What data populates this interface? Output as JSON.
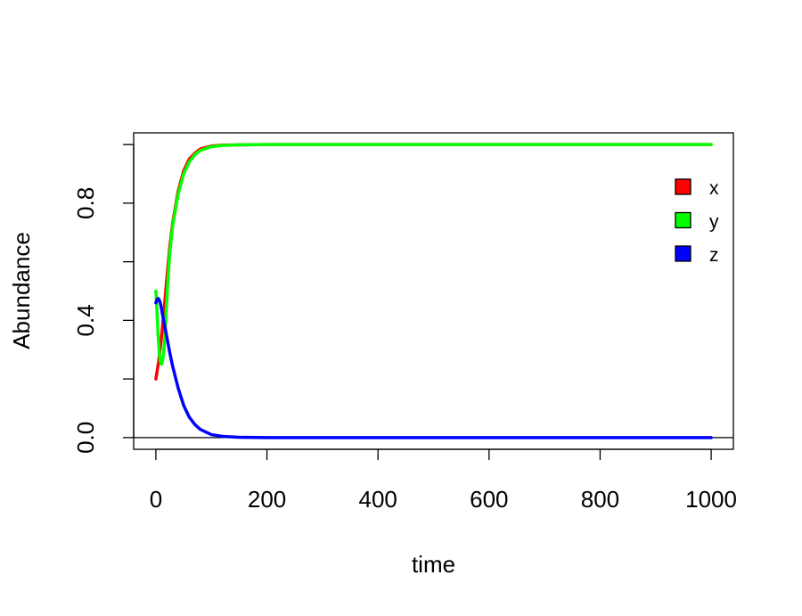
{
  "chart_data": {
    "type": "line",
    "title": "",
    "xlabel": "time",
    "ylabel": "Abundance",
    "xlim": [
      -40,
      1040
    ],
    "ylim": [
      -0.04,
      1.04
    ],
    "xticks": [
      0,
      200,
      400,
      600,
      800,
      1000
    ],
    "xtick_labels": [
      "0",
      "200",
      "400",
      "600",
      "800",
      "1000"
    ],
    "yticks": [
      0.0,
      0.2,
      0.4,
      0.6,
      0.8,
      1.0
    ],
    "ytick_labels": [
      "0.0",
      "",
      "0.4",
      "",
      "0.8",
      ""
    ],
    "hline": 0,
    "grid": false,
    "legend_position": "right",
    "series": [
      {
        "name": "x",
        "color": "#ff0000",
        "x": [
          0,
          5,
          10,
          15,
          20,
          25,
          30,
          40,
          50,
          60,
          70,
          80,
          100,
          120,
          150,
          200,
          300,
          500,
          1000
        ],
        "y": [
          0.2,
          0.26,
          0.34,
          0.44,
          0.55,
          0.65,
          0.73,
          0.84,
          0.91,
          0.95,
          0.97,
          0.985,
          0.995,
          0.998,
          0.999,
          1.0,
          1.0,
          1.0,
          1.0
        ]
      },
      {
        "name": "y",
        "color": "#00ff00",
        "x": [
          0,
          2,
          4,
          6,
          8,
          10,
          12,
          14,
          16,
          18,
          20,
          22,
          25,
          30,
          40,
          50,
          60,
          70,
          80,
          100,
          120,
          150,
          200,
          300,
          500,
          1000
        ],
        "y": [
          0.5,
          0.43,
          0.35,
          0.29,
          0.26,
          0.25,
          0.26,
          0.29,
          0.34,
          0.41,
          0.48,
          0.55,
          0.63,
          0.72,
          0.83,
          0.9,
          0.94,
          0.965,
          0.98,
          0.993,
          0.997,
          0.999,
          1.0,
          1.0,
          1.0,
          1.0
        ]
      },
      {
        "name": "z",
        "color": "#0000ff",
        "x": [
          0,
          2,
          4,
          6,
          8,
          10,
          12,
          15,
          20,
          25,
          30,
          40,
          50,
          60,
          70,
          80,
          100,
          120,
          150,
          200,
          300,
          500,
          1000
        ],
        "y": [
          0.46,
          0.47,
          0.475,
          0.47,
          0.46,
          0.44,
          0.42,
          0.39,
          0.34,
          0.29,
          0.245,
          0.17,
          0.11,
          0.07,
          0.045,
          0.028,
          0.01,
          0.004,
          0.001,
          0.0,
          0.0,
          0.0,
          0.0
        ]
      }
    ]
  }
}
